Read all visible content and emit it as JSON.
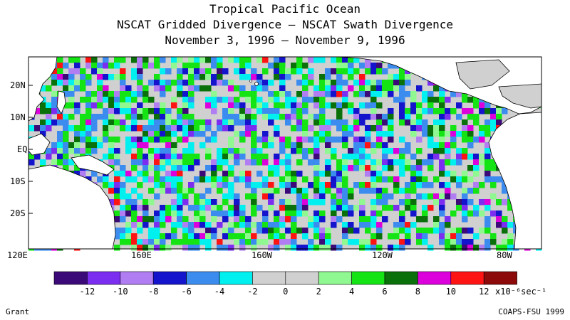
{
  "titles": {
    "line1": "Tropical Pacific Ocean",
    "line2": "NSCAT Gridded Divergence – NSCAT Swath Divergence",
    "line3": "November 3, 1996 – November 9, 1996"
  },
  "axes": {
    "lat_labels": [
      "20N",
      "10N",
      "EQ",
      "10S",
      "20S"
    ],
    "lon_labels": [
      "120E",
      "160E",
      "160W",
      "120W",
      "80W"
    ]
  },
  "colorbar": {
    "tick_labels": [
      "-12",
      "-10",
      "-8",
      "-6",
      "-4",
      "-2",
      "0",
      "2",
      "4",
      "6",
      "8",
      "10",
      "12"
    ],
    "units": "x10⁻⁶sec⁻¹",
    "colors": [
      "#3c0a78",
      "#7c2ef0",
      "#b07ef2",
      "#1414cc",
      "#3c8cf0",
      "#00f0f0",
      "#d0d0d0",
      "#d0d0d0",
      "#90f890",
      "#14e414",
      "#0a700a",
      "#dc00dc",
      "#ff1414",
      "#8c0a0a"
    ]
  },
  "footer": {
    "left": "Grant",
    "right": "COAPS-FSU 1999"
  },
  "map": {
    "land_color": "#ffffff",
    "ocean_bg": "#d0d0d0",
    "coast_color": "#000000"
  }
}
